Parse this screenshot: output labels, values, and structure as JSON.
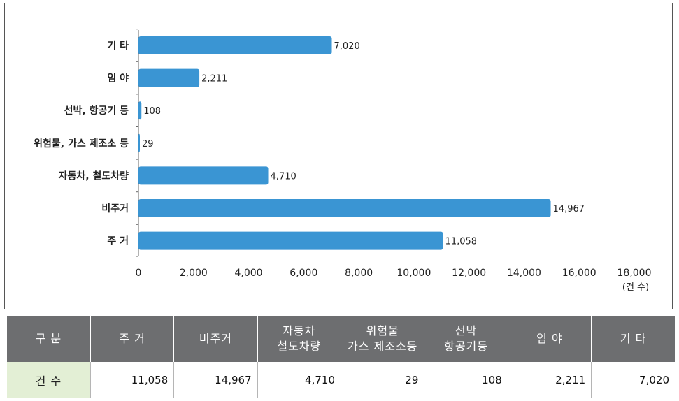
{
  "chart_data": {
    "type": "bar",
    "orientation": "horizontal",
    "categories": [
      "기 타",
      "임 야",
      "선박, 항공기 등",
      "위험물, 가스 제조소 등",
      "자동차, 철도차량",
      "비주거",
      "주 거"
    ],
    "values": [
      7020,
      2211,
      108,
      29,
      4710,
      14967,
      11058
    ],
    "value_labels": [
      "7,020",
      "2,211",
      "108",
      "29",
      "4,710",
      "14,967",
      "11,058"
    ],
    "ticks": [
      "0",
      "2,000",
      "4,000",
      "6,000",
      "8,000",
      "10,000",
      "12,000",
      "14,000",
      "16,000",
      "18,000"
    ],
    "tick_values": [
      0,
      2000,
      4000,
      6000,
      8000,
      10000,
      12000,
      14000,
      16000,
      18000
    ],
    "xlim": [
      0,
      18000
    ],
    "unit_label": "(건 수)",
    "bar_color": "#3a95d3",
    "grid": false
  },
  "table": {
    "row_header": "구 분",
    "columns": [
      "주 거",
      "비주거",
      "자동차\n철도차량",
      "위험물\n가스 제조소등",
      "선박\n항공기등",
      "임 야",
      "기 타"
    ],
    "row_label": "건 수",
    "values": [
      "11,058",
      "14,967",
      "4,710",
      "29",
      "108",
      "2,211",
      "7,020"
    ]
  }
}
